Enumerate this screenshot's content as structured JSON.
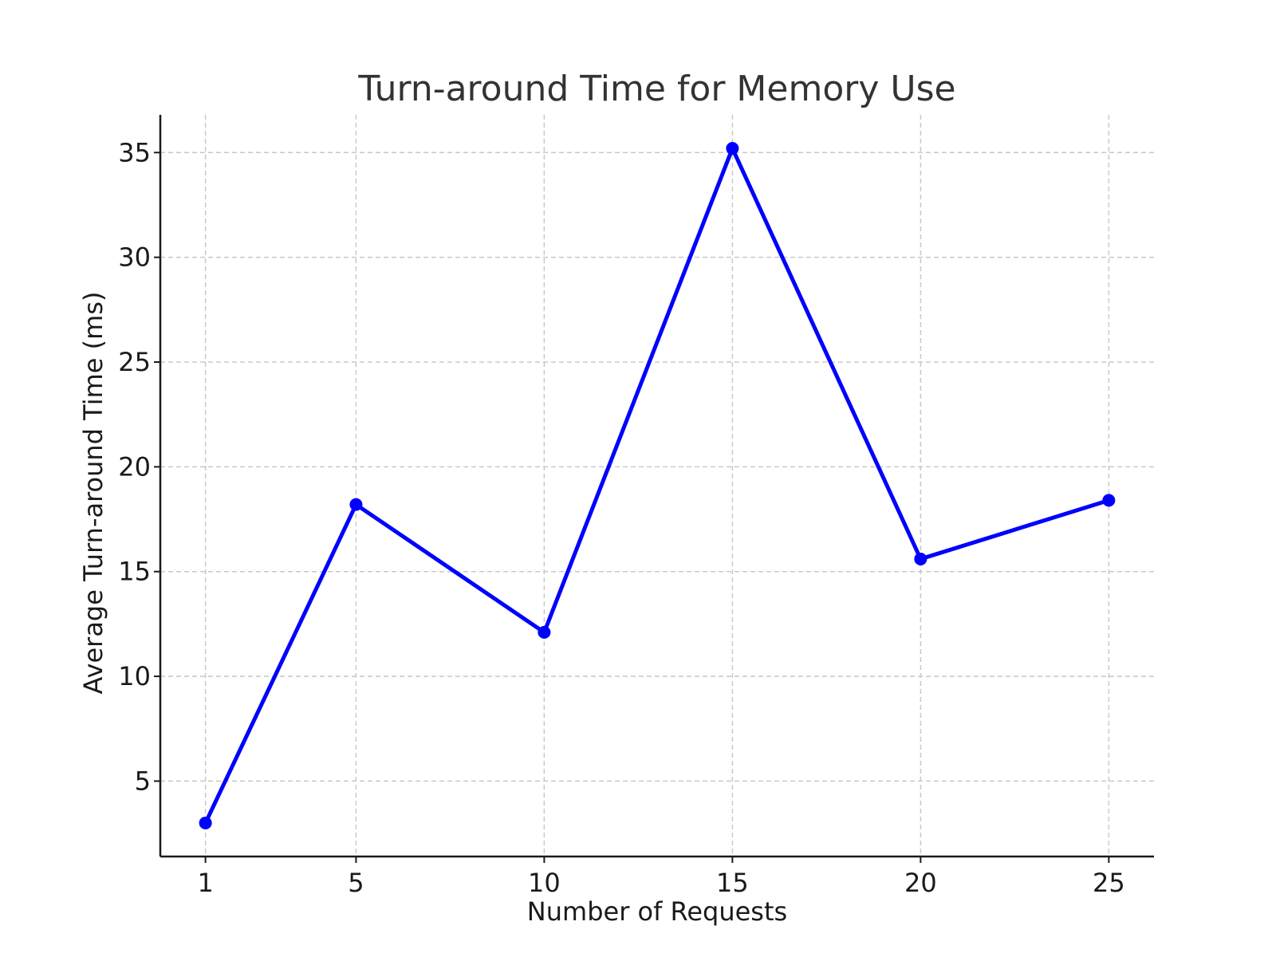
{
  "chart_data": {
    "type": "line",
    "title": "Turn-around Time for Memory Use",
    "xlabel": "Number of Requests",
    "ylabel": "Average Turn-around Time (ms)",
    "x": [
      1,
      5,
      10,
      15,
      20,
      25
    ],
    "x_ticks": [
      "1",
      "5",
      "10",
      "15",
      "20",
      "25"
    ],
    "y_ticks": [
      5,
      10,
      15,
      20,
      25,
      30,
      35
    ],
    "series": [
      {
        "values": [
          3.0,
          18.2,
          12.1,
          35.2,
          15.6,
          18.4
        ],
        "color": "#0000ff",
        "marker": "circle"
      }
    ],
    "xlim": [
      -0.2,
      26.2
    ],
    "ylim": [
      1.4,
      36.8
    ],
    "grid": true,
    "legend": "none"
  }
}
